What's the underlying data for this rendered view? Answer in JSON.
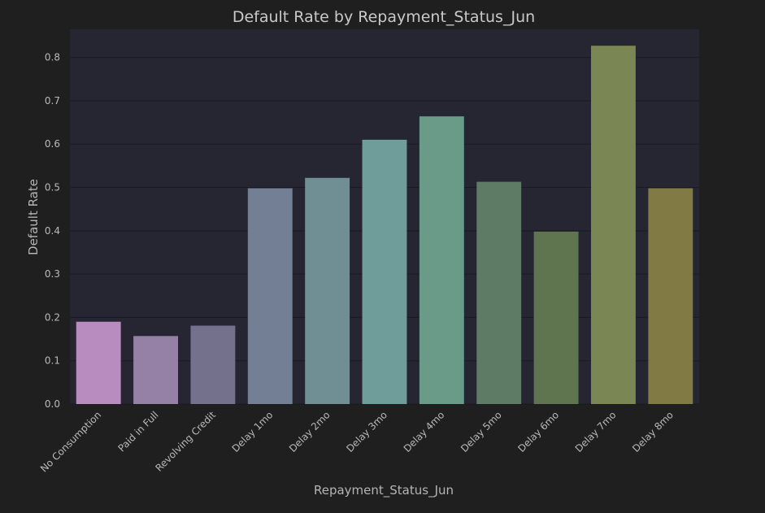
{
  "chart_data": {
    "type": "bar",
    "title": "Default Rate by Repayment_Status_Jun",
    "xlabel": "Repayment_Status_Jun",
    "ylabel": "Default Rate",
    "categories": [
      "No Consumption",
      "Paid in Full",
      "Revolving Credit",
      "Delay 1mo",
      "Delay 2mo",
      "Delay 3mo",
      "Delay 4mo",
      "Delay 5mo",
      "Delay 6mo",
      "Delay 7mo",
      "Delay 8mo"
    ],
    "values": [
      0.19,
      0.157,
      0.181,
      0.498,
      0.522,
      0.61,
      0.664,
      0.513,
      0.398,
      0.827,
      0.498
    ],
    "colors": [
      "#b88cbf",
      "#9581a6",
      "#73718c",
      "#737f95",
      "#6f8f95",
      "#6e9d9a",
      "#6a9a88",
      "#5e7b65",
      "#5f7550",
      "#7b8655",
      "#817a44"
    ],
    "yticks": [
      "0.0",
      "0.1",
      "0.2",
      "0.3",
      "0.4",
      "0.5",
      "0.6",
      "0.7",
      "0.8"
    ],
    "ylim": [
      0,
      0.865
    ],
    "grid": true,
    "theme": {
      "figure_bg": "#1f1f1f",
      "plot_bg": "#262632"
    }
  }
}
